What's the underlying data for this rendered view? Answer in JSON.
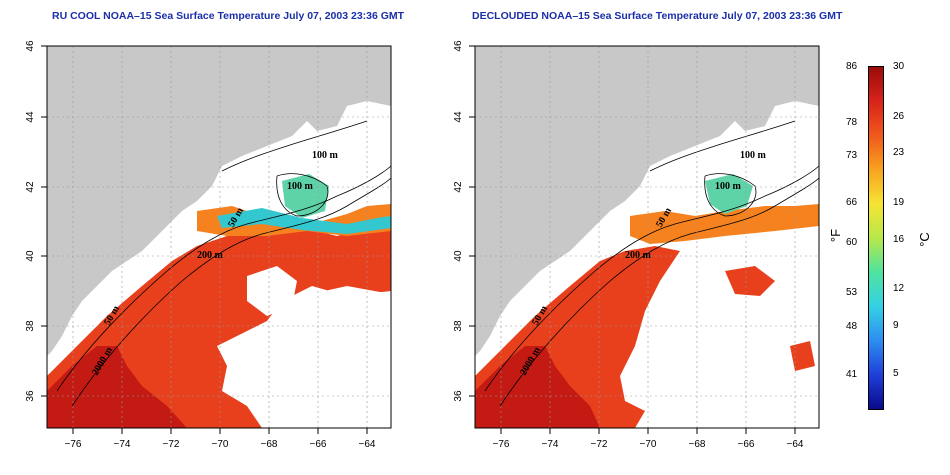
{
  "titles": {
    "left": "RU COOL NOAA–15 Sea Surface Temperature July 07, 2003 23:36 GMT",
    "right": "DECLOUDED NOAA–15 Sea Surface Temperature July 07, 2003 23:36 GMT"
  },
  "axes": {
    "x_ticks": [
      "−76",
      "−74",
      "−72",
      "−70",
      "−68",
      "−66",
      "−64"
    ],
    "y_ticks": [
      "46",
      "44",
      "42",
      "40",
      "38",
      "36"
    ]
  },
  "contour_labels": {
    "left": [
      "100 m",
      "100 m",
      "50 m",
      "200 m",
      "50 m",
      "2000 m"
    ],
    "right": [
      "100 m",
      "100 m",
      "50 m",
      "200 m",
      "50 m",
      "2000 m"
    ]
  },
  "colorbar": {
    "fahrenheit_labels": [
      "86",
      "78",
      "73",
      "66",
      "60",
      "53",
      "48",
      "41"
    ],
    "celsius_labels": [
      "30",
      "26",
      "23",
      "19",
      "16",
      "12",
      "9",
      "5"
    ],
    "unit_f": "°F",
    "unit_c": "°C",
    "gradient": [
      "#0a0a8c",
      "#1f3fd8",
      "#2e8df0",
      "#33d1e6",
      "#4fe3a0",
      "#b6e84a",
      "#f6e433",
      "#f8a21f",
      "#f0581c",
      "#d8231a",
      "#9a0b0b"
    ]
  },
  "colors": {
    "land": "#c8c8c8",
    "ocean_nodata": "#ffffff",
    "title": "#1a2fa8",
    "warm": "#e8401c",
    "hot": "#c41a14",
    "mid": "#f5821f",
    "cool": "#5fd3a8"
  }
}
